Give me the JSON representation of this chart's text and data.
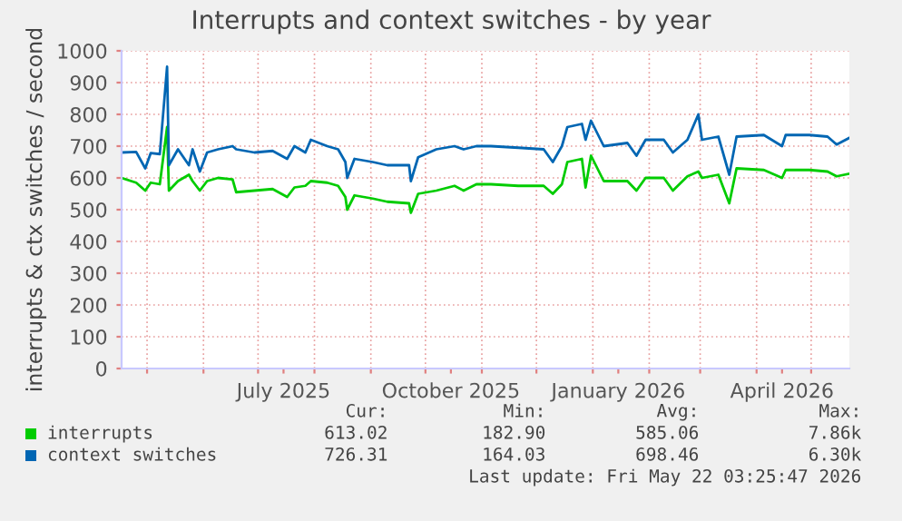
{
  "chart_data": {
    "type": "line",
    "title": "Interrupts and context switches - by year",
    "ylabel": "interrupts & ctx switches / second",
    "x": [
      "2025-04-17",
      "2025-04-25",
      "2025-04-30",
      "2025-05-03",
      "2025-05-08",
      "2025-05-12",
      "2025-05-13",
      "2025-05-18",
      "2025-05-24",
      "2025-05-26",
      "2025-05-30",
      "2025-06-03",
      "2025-06-09",
      "2025-06-17",
      "2025-06-19",
      "2025-06-29",
      "2025-07-09",
      "2025-07-17",
      "2025-07-21",
      "2025-07-27",
      "2025-07-30",
      "2025-08-08",
      "2025-08-14",
      "2025-08-18",
      "2025-08-19",
      "2025-08-23",
      "2025-09-02",
      "2025-09-10",
      "2025-09-22",
      "2025-09-23",
      "2025-09-27",
      "2025-10-07",
      "2025-10-17",
      "2025-10-22",
      "2025-10-29",
      "2025-11-06",
      "2025-11-21",
      "2025-12-05",
      "2025-12-10",
      "2025-12-15",
      "2025-12-18",
      "2025-12-26",
      "2025-12-28",
      "2025-12-31",
      "2026-01-07",
      "2026-01-20",
      "2026-01-25",
      "2026-01-30",
      "2026-02-09",
      "2026-02-14",
      "2026-02-22",
      "2026-02-28",
      "2026-03-02",
      "2026-03-11",
      "2026-03-17",
      "2026-03-21",
      "2026-04-05",
      "2026-04-15",
      "2026-04-17",
      "2026-04-30",
      "2026-05-10",
      "2026-05-15",
      "2026-05-22"
    ],
    "series": [
      {
        "name": "interrupts",
        "color": "#00cc00",
        "values": [
          600,
          585,
          560,
          585,
          580,
          760,
          560,
          590,
          610,
          590,
          560,
          590,
          600,
          595,
          555,
          560,
          565,
          540,
          570,
          575,
          590,
          585,
          575,
          540,
          500,
          545,
          535,
          525,
          520,
          490,
          550,
          560,
          575,
          560,
          580,
          580,
          575,
          575,
          550,
          580,
          650,
          660,
          570,
          670,
          590,
          590,
          560,
          600,
          600,
          560,
          605,
          620,
          600,
          610,
          520,
          630,
          625,
          600,
          625,
          625,
          620,
          605,
          613
        ]
      },
      {
        "name": "context switches",
        "color": "#0066b3",
        "values": [
          680,
          682,
          630,
          678,
          675,
          950,
          640,
          690,
          640,
          690,
          620,
          680,
          690,
          700,
          690,
          680,
          685,
          660,
          700,
          680,
          720,
          700,
          690,
          650,
          600,
          660,
          650,
          640,
          640,
          590,
          665,
          690,
          700,
          690,
          700,
          700,
          695,
          690,
          650,
          700,
          760,
          770,
          720,
          780,
          700,
          710,
          670,
          720,
          720,
          680,
          720,
          800,
          720,
          730,
          610,
          730,
          735,
          700,
          735,
          735,
          730,
          705,
          726
        ]
      }
    ],
    "xlim": [
      "2025-04-17",
      "2026-05-22"
    ],
    "xticks": [
      {
        "value": "2025-05-01",
        "label": null
      },
      {
        "value": "2025-06-01",
        "label": null
      },
      {
        "value": "2025-07-01",
        "label": null
      },
      {
        "value": "2025-07-15",
        "label": "July 2025"
      },
      {
        "value": "2025-08-01",
        "label": null
      },
      {
        "value": "2025-09-01",
        "label": null
      },
      {
        "value": "2025-10-01",
        "label": null
      },
      {
        "value": "2025-10-15",
        "label": "October 2025"
      },
      {
        "value": "2025-11-01",
        "label": null
      },
      {
        "value": "2025-12-01",
        "label": null
      },
      {
        "value": "2026-01-01",
        "label": null
      },
      {
        "value": "2026-01-15",
        "label": "January 2026"
      },
      {
        "value": "2026-02-01",
        "label": null
      },
      {
        "value": "2026-03-01",
        "label": null
      },
      {
        "value": "2026-04-01",
        "label": null
      },
      {
        "value": "2026-04-15",
        "label": "April 2026"
      },
      {
        "value": "2026-05-01",
        "label": null
      }
    ],
    "ylim": [
      0,
      1000
    ],
    "yticks": [
      0,
      100,
      200,
      300,
      400,
      500,
      600,
      700,
      800,
      900,
      1000
    ],
    "grid": true,
    "legend": "bottom",
    "annotations": [
      "Cur:",
      "Min:",
      "Avg:",
      "Max:",
      "613.02",
      "182.90",
      "585.06",
      "7.86k",
      "726.31",
      "164.03",
      "698.46",
      "6.30k",
      "Last update: Fri May 22 03:25:47 2026"
    ]
  }
}
